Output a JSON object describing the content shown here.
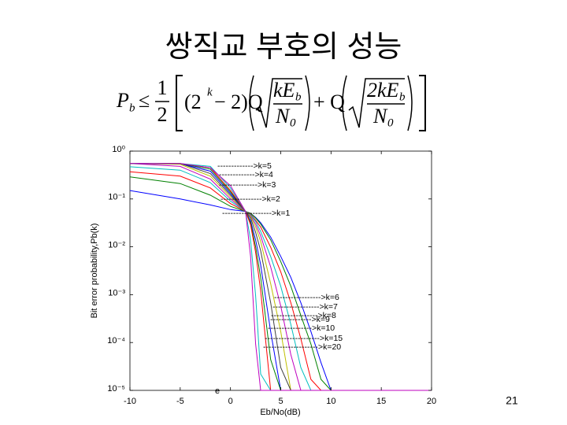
{
  "slide": {
    "title": "쌍직교 부호의 성능",
    "page_number": "21",
    "formula": {
      "lhs": "P",
      "lhs_sub": "b",
      "rel": "≤",
      "num": "1",
      "den": "2",
      "open": "(2",
      "exp": "k",
      "mid": "− 2)Q",
      "frac1_num": "kE",
      "frac1_num_sub": "b",
      "frac1_den": "N",
      "frac1_den_sub": "0",
      "plus": "+ Q",
      "frac2_num": "2kE",
      "frac2_num_sub": "b",
      "frac2_den": "N",
      "frac2_den_sub": "0"
    }
  },
  "chart_data": {
    "type": "line",
    "xlabel": "Eb/No(dB)",
    "ylabel": "Bit error probability,Pb(k)",
    "stray_text": "e",
    "y_log": true,
    "grid": false,
    "xlim": [
      -10,
      20
    ],
    "xticks": [
      -10,
      -5,
      0,
      5,
      10,
      15,
      20
    ],
    "ylim": [
      1e-05,
      1
    ],
    "yticks": [
      {
        "value": 1,
        "label": "10⁰"
      },
      {
        "value": 0.1,
        "label": "10⁻¹"
      },
      {
        "value": 0.01,
        "label": "10⁻²"
      },
      {
        "value": 0.001,
        "label": "10⁻³"
      },
      {
        "value": 0.0001,
        "label": "10⁻⁴"
      },
      {
        "value": 1e-05,
        "label": "10⁻⁵"
      }
    ],
    "x": [
      -10,
      -5,
      -2,
      0,
      1.5,
      2,
      2.5,
      3,
      4,
      5,
      6,
      7,
      8,
      9,
      10,
      20
    ],
    "series": [
      {
        "color": "#0000ff",
        "values": [
          0.15,
          0.1,
          0.075,
          0.06,
          0.055,
          0.05,
          0.041,
          0.032,
          0.016,
          0.0063,
          0.0023,
          0.00068,
          0.00017,
          3.8e-05,
          1e-05,
          1e-05
        ]
      },
      {
        "color": "#008000",
        "values": [
          0.29,
          0.21,
          0.12,
          0.07,
          0.055,
          0.05,
          0.04,
          0.03,
          0.014,
          0.0049,
          0.0015,
          0.00037,
          9.3e-05,
          1.7e-05,
          1e-05,
          1e-05
        ]
      },
      {
        "color": "#ff0000",
        "values": [
          0.37,
          0.3,
          0.17,
          0.08,
          0.055,
          0.048,
          0.036,
          0.026,
          0.0098,
          0.003,
          0.00068,
          0.00012,
          1.7e-05,
          1e-05,
          1e-05,
          1e-05
        ]
      },
      {
        "color": "#00bfbf",
        "values": [
          0.47,
          0.4,
          0.22,
          0.09,
          0.055,
          0.047,
          0.034,
          0.021,
          0.0063,
          0.0015,
          0.00024,
          3e-05,
          1e-05,
          1e-05,
          1e-05,
          1e-05
        ]
      },
      {
        "color": "#bf00bf",
        "values": [
          0.55,
          0.48,
          0.26,
          0.1,
          0.055,
          0.045,
          0.03,
          0.017,
          0.0038,
          0.00058,
          5.6e-05,
          1e-05,
          1e-05,
          1e-05,
          1e-05,
          1e-05
        ]
      },
      {
        "color": "#bfbf00",
        "values": [
          0.55,
          0.53,
          0.3,
          0.11,
          0.055,
          0.043,
          0.026,
          0.013,
          0.0017,
          0.00017,
          1e-05,
          1e-05,
          1e-05,
          1e-05,
          1e-05,
          1e-05
        ]
      },
      {
        "color": "#404040",
        "values": [
          0.55,
          0.55,
          0.34,
          0.12,
          0.055,
          0.04,
          0.02,
          0.0083,
          0.00068,
          3e-05,
          1e-05,
          1e-05,
          1e-05,
          1e-05,
          1e-05,
          1e-05
        ]
      },
      {
        "color": "#0000ff",
        "values": [
          0.55,
          0.55,
          0.38,
          0.13,
          0.055,
          0.035,
          0.014,
          0.0042,
          0.00017,
          1e-05,
          1e-05,
          1e-05,
          1e-05,
          1e-05,
          1e-05,
          1e-05
        ]
      },
      {
        "color": "#008000",
        "values": [
          0.55,
          0.55,
          0.42,
          0.14,
          0.055,
          0.032,
          0.01,
          0.0023,
          4.4e-05,
          1e-05,
          1e-05,
          1e-05,
          1e-05,
          1e-05,
          1e-05,
          1e-05
        ]
      },
      {
        "color": "#ff0000",
        "values": [
          0.55,
          0.55,
          0.45,
          0.15,
          0.055,
          0.029,
          0.0076,
          0.0012,
          1e-05,
          1e-05,
          1e-05,
          1e-05,
          1e-05,
          1e-05,
          1e-05,
          1e-05
        ]
      },
      {
        "color": "#00bfbf",
        "values": [
          0.55,
          0.55,
          0.48,
          0.17,
          0.055,
          0.014,
          0.00095,
          2.2e-05,
          1e-05,
          1e-05,
          1e-05,
          1e-05,
          1e-05,
          1e-05,
          1e-05,
          1e-05
        ]
      },
      {
        "color": "#bf00bf",
        "values": [
          0.55,
          0.55,
          0.45,
          0.19,
          0.055,
          0.0063,
          9.3e-05,
          1e-05,
          1e-05,
          1e-05,
          1e-05,
          1e-05,
          1e-05,
          1e-05,
          1e-05,
          1e-05
        ]
      }
    ],
    "annotations": [
      "------------->k=5",
      "------------->k=4",
      "-------------->k=3",
      "--------------->k=2",
      "------------------>k=1",
      "----------------->k=6",
      "----------------->k=7",
      "----------------->k=8",
      "--------------->k=9",
      "---------------->k=10",
      "-------------------->k=15",
      "-------------------->k=20"
    ]
  }
}
